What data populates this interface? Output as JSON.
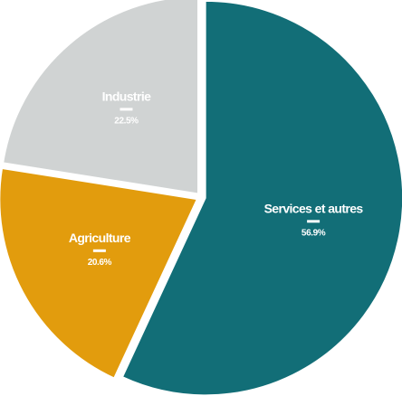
{
  "chart_data": {
    "type": "pie",
    "title": "",
    "unit": "%",
    "start": "12 o'clock",
    "direction": "clockwise",
    "slices": [
      {
        "label": "Services et autres",
        "value": 56.9,
        "value_label": "56.9%",
        "color": "#126e77"
      },
      {
        "label": "Agriculture",
        "value": 20.6,
        "value_label": "20.6%",
        "color": "#e29c0d"
      },
      {
        "label": "Industrie",
        "value": 22.5,
        "value_label": "22.5%",
        "color": "#d0d3d3"
      }
    ],
    "separator_color": "#ffffff",
    "label_color": "#ffffff"
  }
}
